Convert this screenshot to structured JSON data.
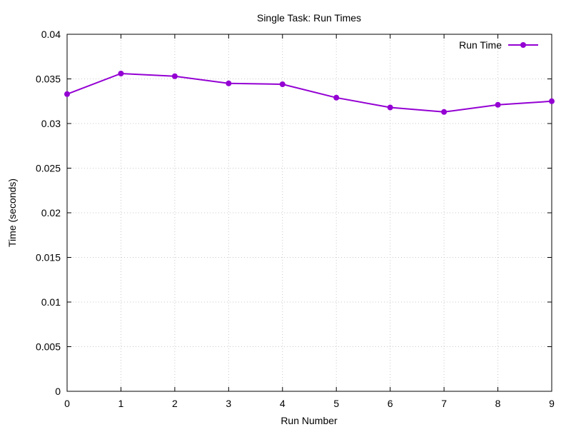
{
  "chart_data": {
    "type": "line",
    "title": "Single Task: Run Times",
    "xlabel": "Run Number",
    "ylabel": "Time (seconds)",
    "xlim": [
      0,
      9
    ],
    "ylim": [
      0,
      0.04
    ],
    "x_ticks": [
      "0",
      "1",
      "2",
      "3",
      "4",
      "5",
      "6",
      "7",
      "8",
      "9"
    ],
    "y_ticks": [
      "0",
      "0.005",
      "0.01",
      "0.015",
      "0.02",
      "0.025",
      "0.03",
      "0.035",
      "0.04"
    ],
    "grid": true,
    "legend_position": "top-right",
    "series": [
      {
        "name": "Run Time",
        "color": "#9400d3",
        "x": [
          0,
          1,
          2,
          3,
          4,
          5,
          6,
          7,
          8,
          9
        ],
        "values": [
          0.0333,
          0.0356,
          0.0353,
          0.0345,
          0.0344,
          0.0329,
          0.0318,
          0.0313,
          0.0321,
          0.0325
        ]
      }
    ]
  }
}
